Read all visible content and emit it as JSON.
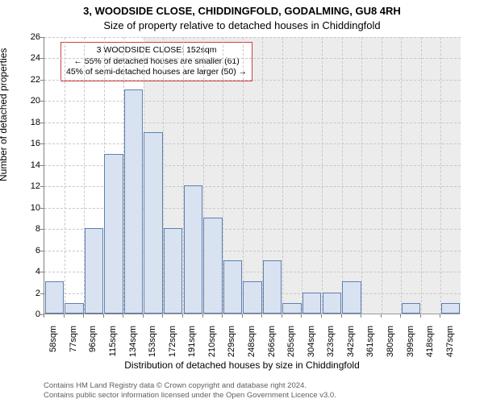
{
  "title": {
    "main": "3, WOODSIDE CLOSE, CHIDDINGFOLD, GODALMING, GU8 4RH",
    "sub": "Size of property relative to detached houses in Chiddingfold"
  },
  "chart": {
    "type": "histogram",
    "bar_color": "#d8e2f0",
    "bar_border_color": "#6080b0",
    "background_color": "#ffffff",
    "grid_color": "#c8c8c8",
    "axis_color": "#808080",
    "ylim": [
      0,
      26
    ],
    "yticks": [
      0,
      2,
      4,
      6,
      8,
      10,
      12,
      14,
      16,
      18,
      20,
      22,
      24,
      26
    ],
    "xticks": [
      "58sqm",
      "77sqm",
      "96sqm",
      "115sqm",
      "134sqm",
      "153sqm",
      "172sqm",
      "191sqm",
      "210sqm",
      "229sqm",
      "248sqm",
      "266sqm",
      "285sqm",
      "304sqm",
      "323sqm",
      "342sqm",
      "361sqm",
      "380sqm",
      "399sqm",
      "418sqm",
      "437sqm"
    ],
    "values": [
      3,
      1,
      8,
      15,
      21,
      17,
      8,
      12,
      9,
      5,
      3,
      5,
      1,
      2,
      2,
      3,
      0,
      0,
      1,
      0,
      1
    ],
    "bar_width_ratio": 0.95,
    "ylabel": "Number of detached properties",
    "xlabel": "Distribution of detached houses by size in Chiddingfold",
    "label_fontsize": 12,
    "tick_fontsize": 11
  },
  "annotation": {
    "line1": "3 WOODSIDE CLOSE: 152sqm",
    "line2": "← 55% of detached houses are smaller (61)",
    "line3": "45% of semi-detached houses are larger (50) →",
    "border_color": "#d04040",
    "fontsize": 10.5,
    "marker_x_index": 5,
    "overlay_color": "rgba(200,200,200,0.35)"
  },
  "footer": {
    "line1": "Contains HM Land Registry data © Crown copyright and database right 2024.",
    "line2": "Contains public sector information licensed under the Open Government Licence v3.0.",
    "color": "#606060"
  }
}
